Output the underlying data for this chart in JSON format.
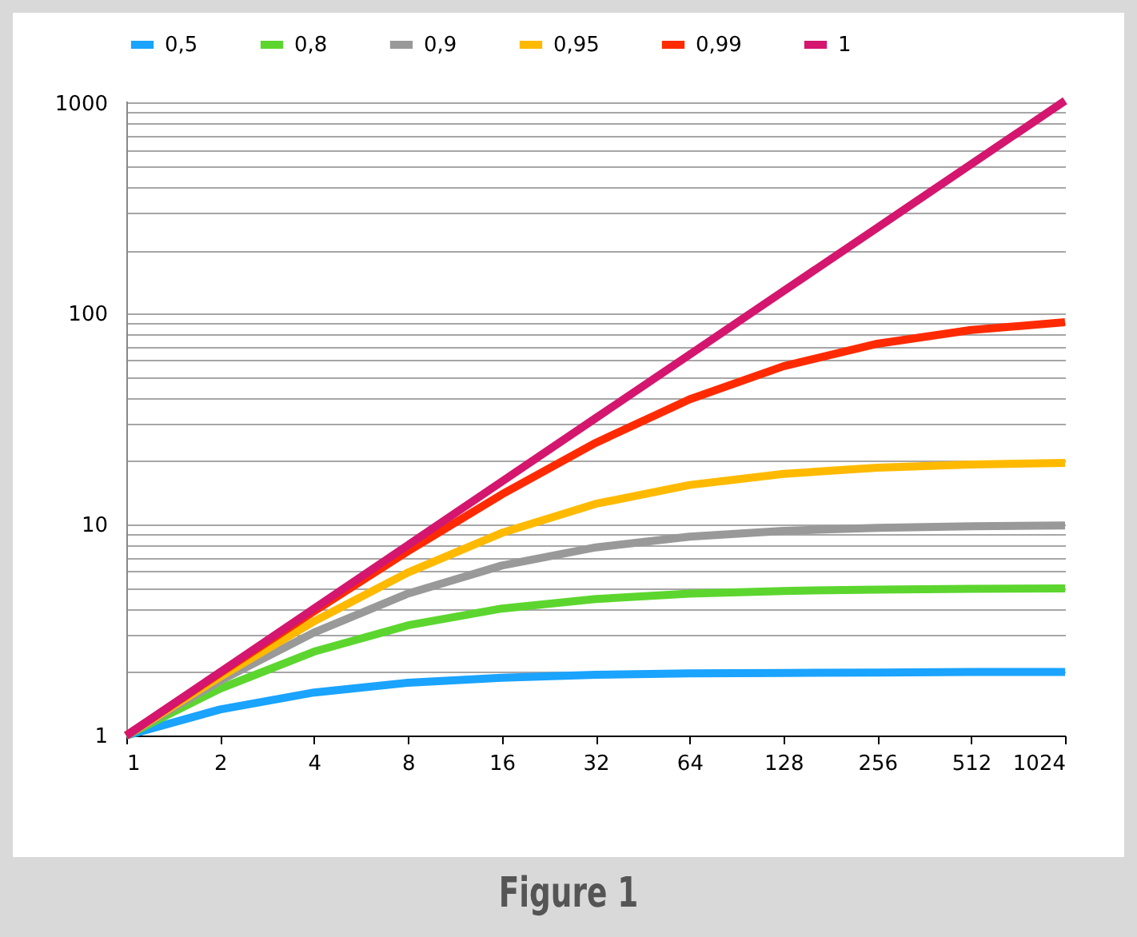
{
  "chart_data": {
    "type": "line",
    "title": "Figure 1",
    "categories": [
      "1",
      "2",
      "4",
      "8",
      "16",
      "32",
      "64",
      "128",
      "256",
      "512",
      "1024"
    ],
    "series": [
      {
        "name": "0,5",
        "color": "#1aa3ff",
        "values": [
          1,
          1.33,
          1.6,
          1.78,
          1.88,
          1.94,
          1.97,
          1.98,
          1.99,
          2,
          2
        ]
      },
      {
        "name": "0,8",
        "color": "#5cd62e",
        "values": [
          1,
          1.67,
          2.5,
          3.33,
          4,
          4.44,
          4.71,
          4.85,
          4.92,
          4.96,
          4.98
        ]
      },
      {
        "name": "0,9",
        "color": "#999999",
        "values": [
          1,
          1.82,
          3.08,
          4.71,
          6.4,
          7.8,
          8.77,
          9.34,
          9.66,
          9.83,
          9.91
        ]
      },
      {
        "name": "0,95",
        "color": "#ffba00",
        "values": [
          1,
          1.9,
          3.48,
          5.93,
          9.14,
          12.55,
          15.42,
          17.41,
          18.62,
          19.28,
          19.64
        ]
      },
      {
        "name": "0,99",
        "color": "#ff2a00",
        "values": [
          1,
          1.98,
          3.88,
          7.48,
          13.91,
          24.43,
          39.26,
          56.39,
          72.11,
          83.8,
          91.18
        ]
      },
      {
        "name": "1",
        "color": "#d4166f",
        "values": [
          1,
          2,
          4,
          8,
          16,
          32,
          64,
          128,
          256,
          512,
          1024
        ]
      }
    ],
    "log": "y",
    "ylim": [
      1,
      1024
    ],
    "yticks": [
      1,
      {
        "value": 2,
        "label": null
      },
      {
        "value": 3,
        "label": null
      },
      {
        "value": 4,
        "label": null
      },
      {
        "value": 5,
        "label": null
      },
      {
        "value": 6,
        "label": null
      },
      {
        "value": 7,
        "label": null
      },
      {
        "value": 8,
        "label": null
      },
      {
        "value": 9,
        "label": null
      },
      10,
      {
        "value": 20,
        "label": null
      },
      {
        "value": 30,
        "label": null
      },
      {
        "value": 40,
        "label": null
      },
      {
        "value": 50,
        "label": null
      },
      {
        "value": 60,
        "label": null
      },
      {
        "value": 70,
        "label": null
      },
      {
        "value": 80,
        "label": null
      },
      {
        "value": 90,
        "label": null
      },
      100,
      {
        "value": 200,
        "label": null
      },
      {
        "value": 300,
        "label": null
      },
      {
        "value": 400,
        "label": null
      },
      {
        "value": 500,
        "label": null
      },
      {
        "value": 600,
        "label": null
      },
      {
        "value": 700,
        "label": null
      },
      {
        "value": 800,
        "label": null
      },
      {
        "value": 900,
        "label": null
      },
      1000
    ],
    "grid": "y",
    "legend": "top",
    "marker": "none",
    "line_style": "solid"
  }
}
